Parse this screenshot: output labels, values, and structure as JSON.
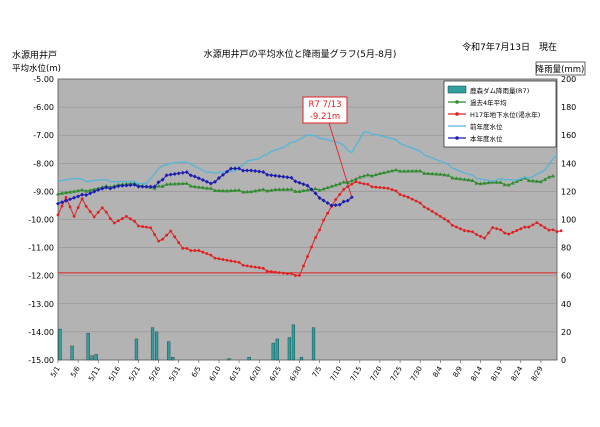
{
  "chart_data": {
    "type": "line",
    "title": "水源用井戸の平均水位と降雨量グラフ(5月-8月)",
    "date_label": "令和7年7月13日　現在",
    "ylabel_left_line1": "水源用井戸",
    "ylabel_left_line2": "平均水位(m)",
    "ylabel_right": "降雨量(mm)",
    "ylim_left": [
      -15.0,
      -5.0
    ],
    "ylim_right": [
      0,
      200
    ],
    "left_ticks": [
      "-5.00",
      "-6.00",
      "-7.00",
      "-8.00",
      "-9.00",
      "-10.00",
      "-11.00",
      "-12.00",
      "-13.00",
      "-14.00",
      "-15.00"
    ],
    "right_ticks": [
      "200",
      "180",
      "160",
      "140",
      "120",
      "100",
      "80",
      "60",
      "40",
      "20",
      "0"
    ],
    "x_labels": [
      "5/1",
      "5/6",
      "5/11",
      "5/16",
      "5/21",
      "5/26",
      "5/31",
      "6/5",
      "6/10",
      "6/15",
      "6/20",
      "6/25",
      "6/30",
      "7/5",
      "7/10",
      "7/15",
      "7/20",
      "7/25",
      "7/30",
      "8/4",
      "8/9",
      "8/14",
      "8/19",
      "8/24",
      "8/29"
    ],
    "grid": true,
    "legend_position": "top-right",
    "reference_line": {
      "value": -11.9,
      "color": "#e02020"
    },
    "annotation": {
      "line1": "R7  7/13",
      "line2": "-9.21m",
      "x_day": 73,
      "y": -9.21
    },
    "series": [
      {
        "name": "鹿森ダム降雨量(R7)",
        "kind": "bar",
        "axis": "right",
        "color": "#33a0a0",
        "values": [
          22,
          0,
          0,
          10,
          0,
          0,
          0,
          19,
          3,
          4,
          0,
          0,
          0,
          0,
          0,
          0,
          0,
          0,
          0,
          15,
          0,
          0,
          0,
          23,
          20,
          0,
          0,
          13,
          2,
          0,
          0,
          0,
          0,
          0,
          0,
          0,
          0,
          0,
          0,
          0,
          0,
          0,
          1,
          0,
          0,
          0,
          0,
          2,
          0,
          0,
          0,
          0,
          0,
          12,
          15,
          0,
          0,
          16,
          25,
          0,
          2,
          0,
          0,
          23,
          0,
          0,
          0,
          0,
          0,
          0,
          0,
          0,
          0,
          0,
          0,
          0,
          0,
          0,
          0,
          0,
          0,
          0,
          0,
          0,
          0,
          0,
          0,
          0,
          0,
          0,
          0,
          0,
          0,
          0,
          0,
          0,
          0,
          0,
          0,
          0,
          0,
          0,
          0,
          0,
          0,
          0,
          0,
          0,
          0,
          0,
          0,
          0,
          0,
          0,
          0,
          0,
          0,
          0,
          0,
          0,
          0,
          0,
          0,
          0
        ]
      },
      {
        "name": "過去4年平均",
        "kind": "line",
        "axis": "left",
        "color": "#2e8b2e",
        "points": [
          [
            0,
            -9.05
          ],
          [
            5,
            -9.0
          ],
          [
            10,
            -8.9
          ],
          [
            15,
            -8.75
          ],
          [
            20,
            -8.75
          ],
          [
            24,
            -8.9
          ],
          [
            27,
            -8.72
          ],
          [
            32,
            -8.75
          ],
          [
            37,
            -8.9
          ],
          [
            42,
            -8.98
          ],
          [
            48,
            -9.0
          ],
          [
            54,
            -8.92
          ],
          [
            60,
            -8.98
          ],
          [
            65,
            -8.92
          ],
          [
            70,
            -8.75
          ],
          [
            75,
            -8.5
          ],
          [
            80,
            -8.35
          ],
          [
            85,
            -8.25
          ],
          [
            90,
            -8.3
          ],
          [
            95,
            -8.4
          ],
          [
            100,
            -8.55
          ],
          [
            105,
            -8.7
          ],
          [
            108,
            -8.68
          ],
          [
            112,
            -8.75
          ],
          [
            116,
            -8.55
          ],
          [
            120,
            -8.65
          ],
          [
            123,
            -8.45
          ]
        ]
      },
      {
        "name": "H17年地下水位(渇水年)",
        "kind": "line",
        "axis": "left",
        "color": "#e02020",
        "points": [
          [
            0,
            -9.8
          ],
          [
            2,
            -9.2
          ],
          [
            4,
            -9.9
          ],
          [
            6,
            -9.3
          ],
          [
            9,
            -9.9
          ],
          [
            11,
            -9.6
          ],
          [
            14,
            -10.1
          ],
          [
            17,
            -9.9
          ],
          [
            20,
            -10.2
          ],
          [
            23,
            -10.3
          ],
          [
            25,
            -10.8
          ],
          [
            28,
            -10.4
          ],
          [
            31,
            -11.05
          ],
          [
            35,
            -11.1
          ],
          [
            38,
            -11.3
          ],
          [
            42,
            -11.45
          ],
          [
            46,
            -11.6
          ],
          [
            52,
            -11.8
          ],
          [
            57,
            -11.95
          ],
          [
            60,
            -11.97
          ],
          [
            63,
            -11.0
          ],
          [
            66,
            -10.0
          ],
          [
            69,
            -9.3
          ],
          [
            72,
            -8.8
          ],
          [
            74,
            -8.65
          ],
          [
            76,
            -8.75
          ],
          [
            82,
            -8.9
          ],
          [
            87,
            -9.2
          ],
          [
            92,
            -9.6
          ],
          [
            97,
            -10.1
          ],
          [
            101,
            -10.4
          ],
          [
            104,
            -10.5
          ],
          [
            106,
            -10.65
          ],
          [
            108,
            -10.3
          ],
          [
            112,
            -10.5
          ],
          [
            116,
            -10.3
          ],
          [
            119,
            -10.1
          ],
          [
            122,
            -10.4
          ],
          [
            125,
            -10.4
          ]
        ]
      },
      {
        "name": "前年度水位",
        "kind": "line",
        "axis": "left",
        "color": "#5ab4d6",
        "points": [
          [
            0,
            -8.6
          ],
          [
            4,
            -8.55
          ],
          [
            7,
            -8.62
          ],
          [
            11,
            -8.6
          ],
          [
            16,
            -8.65
          ],
          [
            22,
            -8.72
          ],
          [
            26,
            -8.05
          ],
          [
            29,
            -7.98
          ],
          [
            33,
            -8.0
          ],
          [
            37,
            -8.35
          ],
          [
            40,
            -8.3
          ],
          [
            44,
            -8.3
          ],
          [
            47,
            -7.9
          ],
          [
            50,
            -7.85
          ],
          [
            53,
            -7.55
          ],
          [
            56,
            -7.45
          ],
          [
            59,
            -7.2
          ],
          [
            62,
            -7.0
          ],
          [
            66,
            -7.1
          ],
          [
            70,
            -7.3
          ],
          [
            73,
            -7.6
          ],
          [
            76,
            -6.9
          ],
          [
            79,
            -6.95
          ],
          [
            84,
            -7.2
          ],
          [
            90,
            -7.6
          ],
          [
            96,
            -8.0
          ],
          [
            101,
            -8.35
          ],
          [
            104,
            -8.5
          ],
          [
            108,
            -8.65
          ],
          [
            111,
            -8.55
          ],
          [
            114,
            -8.6
          ],
          [
            118,
            -8.45
          ],
          [
            121,
            -8.25
          ],
          [
            124,
            -7.7
          ]
        ]
      },
      {
        "name": "本年度水位",
        "kind": "line",
        "axis": "left",
        "color": "#1c1cb0",
        "points": [
          [
            0,
            -9.4
          ],
          [
            5,
            -9.2
          ],
          [
            10,
            -8.95
          ],
          [
            15,
            -8.8
          ],
          [
            20,
            -8.8
          ],
          [
            24,
            -8.85
          ],
          [
            27,
            -8.4
          ],
          [
            32,
            -8.35
          ],
          [
            34,
            -8.45
          ],
          [
            36,
            -8.6
          ],
          [
            38,
            -8.75
          ],
          [
            40,
            -8.5
          ],
          [
            43,
            -8.2
          ],
          [
            48,
            -8.25
          ],
          [
            53,
            -8.4
          ],
          [
            58,
            -8.55
          ],
          [
            62,
            -8.8
          ],
          [
            64,
            -9.1
          ],
          [
            66,
            -9.3
          ],
          [
            68,
            -9.5
          ],
          [
            70,
            -9.5
          ],
          [
            72,
            -9.3
          ],
          [
            73,
            -9.21
          ]
        ]
      }
    ]
  }
}
